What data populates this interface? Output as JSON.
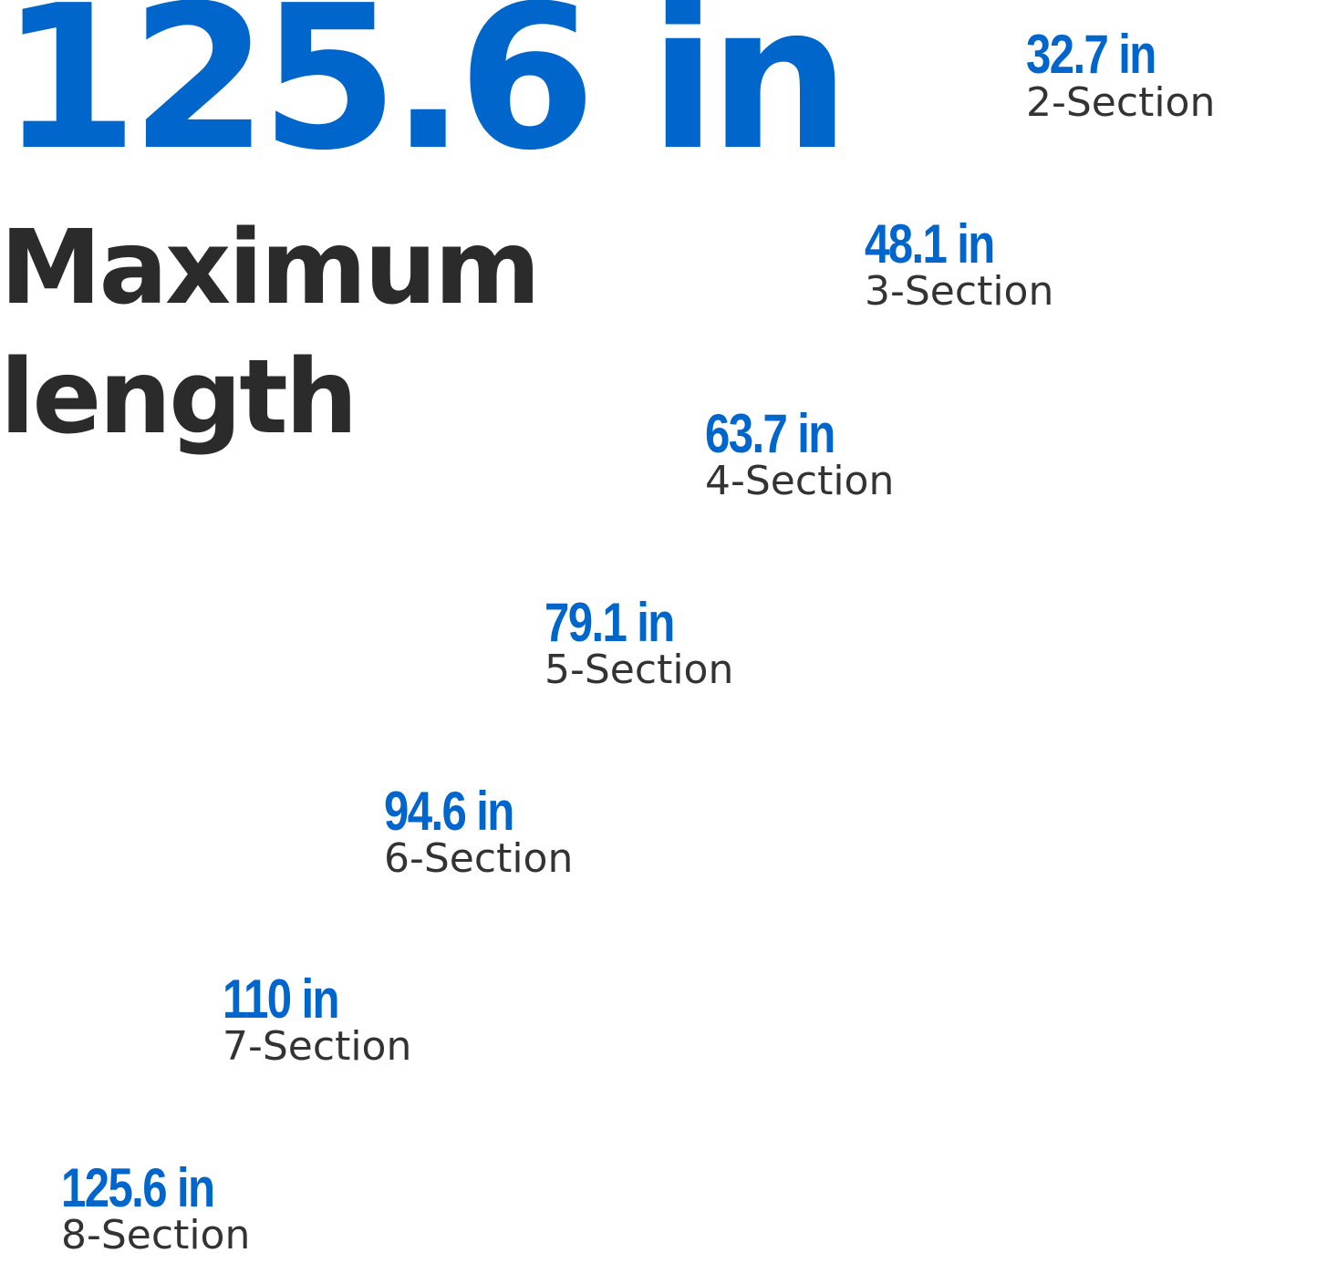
{
  "headline": {
    "value": "125.6 in",
    "label_line1": "Maximum",
    "label_line2": "length"
  },
  "colors": {
    "accent": "#0066cc",
    "text_dark": "#2b2b2b",
    "pole_silver": "#d7dadd",
    "pole_grip": "#2a2a2a"
  },
  "poles": [
    {
      "length": "32.7 in",
      "sections": "2-Section"
    },
    {
      "length": "48.1 in",
      "sections": "3-Section"
    },
    {
      "length": "63.7 in",
      "sections": "4-Section"
    },
    {
      "length": "79.1 in",
      "sections": "5-Section"
    },
    {
      "length": "94.6 in",
      "sections": "6-Section"
    },
    {
      "length": "110 in",
      "sections": "7-Section"
    },
    {
      "length": "125.6 in",
      "sections": "8-Section"
    }
  ]
}
